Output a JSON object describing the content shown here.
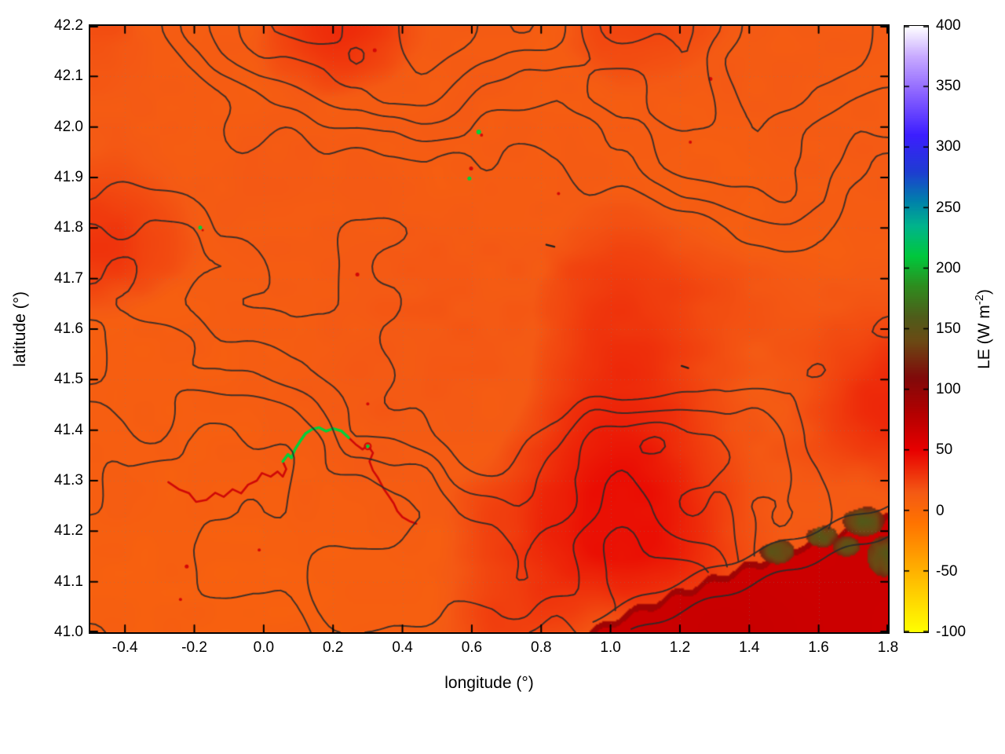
{
  "chart_data": {
    "type": "heatmap",
    "title": "",
    "xlabel": "longitude (°)",
    "ylabel": "latitude (°)",
    "colorbar_label": {
      "prefix": "LE (W m",
      "superscript": "-2",
      "suffix": ")"
    },
    "xlim": [
      -0.5,
      1.8
    ],
    "ylim": [
      41.0,
      42.2
    ],
    "x_ticks": [
      -0.4,
      -0.2,
      0.0,
      0.2,
      0.4,
      0.6,
      0.8,
      1.0,
      1.2,
      1.4,
      1.6,
      1.8
    ],
    "x_tick_labels": [
      "-0.4",
      "-0.2",
      "0.0",
      "0.2",
      "0.4",
      "0.6",
      "0.8",
      "1.0",
      "1.2",
      "1.4",
      "1.6",
      "1.8"
    ],
    "y_ticks": [
      41.0,
      41.1,
      41.2,
      41.3,
      41.4,
      41.5,
      41.6,
      41.7,
      41.8,
      41.9,
      42.0,
      42.1,
      42.2
    ],
    "y_tick_labels": [
      "41.0",
      "41.1",
      "41.2",
      "41.3",
      "41.4",
      "41.5",
      "41.6",
      "41.7",
      "41.8",
      "41.9",
      "42.0",
      "42.1",
      "42.2"
    ],
    "colorbar": {
      "range": [
        -100,
        400
      ],
      "ticks": [
        -100,
        -50,
        0,
        50,
        100,
        150,
        200,
        250,
        300,
        350,
        400
      ],
      "tick_labels": [
        "-100",
        "-50",
        "0",
        "50",
        "100",
        "150",
        "200",
        "250",
        "300",
        "350",
        "400"
      ],
      "palette_stops": [
        {
          "value": -100,
          "color": "#ffff00"
        },
        {
          "value": -70,
          "color": "#ffd200"
        },
        {
          "value": -40,
          "color": "#ffa200"
        },
        {
          "value": -10,
          "color": "#ff7300"
        },
        {
          "value": 15,
          "color": "#f45a14"
        },
        {
          "value": 50,
          "color": "#e80000"
        },
        {
          "value": 80,
          "color": "#b40000"
        },
        {
          "value": 110,
          "color": "#800a0a"
        },
        {
          "value": 140,
          "color": "#6b4a14"
        },
        {
          "value": 160,
          "color": "#4f5c1a"
        },
        {
          "value": 185,
          "color": "#2f8c1e"
        },
        {
          "value": 210,
          "color": "#00c83c"
        },
        {
          "value": 235,
          "color": "#00b48c"
        },
        {
          "value": 255,
          "color": "#0082aa"
        },
        {
          "value": 280,
          "color": "#1e3cd2"
        },
        {
          "value": 310,
          "color": "#3c1eff"
        },
        {
          "value": 345,
          "color": "#8c64ff"
        },
        {
          "value": 375,
          "color": "#c8aaff"
        },
        {
          "value": 400,
          "color": "#ffffff"
        }
      ]
    },
    "overlay": "dark terrain-style contour lines and faint dotted graticule over the LE image",
    "field_summary": {
      "description": "Latent heat flux (LE) map: land mostly LE ≈ 0–25 W m-2 (orange) with diffuse redder patches ≈ 30–45; sea in the bottom-right corner LE ≈ 55–90 (red) with dark olive-green coastal patches ≈ 150; a river course near (0.1°, 41.3°–41.4°) shows LE ≈ 150–250 (green/red line); scattered small red and green specks elsewhere.",
      "land_LE_typical": 10,
      "sea_LE_typical": 60,
      "river_LE_typical": 200,
      "contour_color": "#2d2d2d",
      "grid_style": "dotted"
    },
    "features": {
      "sea": {
        "lon_start": 0.93,
        "rise": 0.235,
        "green_patches": [
          [
            1.48,
            41.16,
            0.05,
            0.025
          ],
          [
            1.61,
            41.19,
            0.045,
            0.022
          ],
          [
            1.73,
            41.22,
            0.06,
            0.03
          ],
          [
            1.79,
            41.15,
            0.05,
            0.04
          ],
          [
            1.68,
            41.17,
            0.04,
            0.02
          ]
        ]
      },
      "river": [
        [
          -0.275,
          41.297
        ],
        [
          -0.245,
          41.283
        ],
        [
          -0.215,
          41.275
        ],
        [
          -0.195,
          41.258
        ],
        [
          -0.165,
          41.262
        ],
        [
          -0.14,
          41.276
        ],
        [
          -0.115,
          41.268
        ],
        [
          -0.09,
          41.283
        ],
        [
          -0.065,
          41.275
        ],
        [
          -0.045,
          41.292
        ],
        [
          -0.02,
          41.3
        ],
        [
          -0.005,
          41.315
        ],
        [
          0.02,
          41.308
        ],
        [
          0.04,
          41.318
        ],
        [
          0.055,
          41.308
        ],
        [
          0.065,
          41.323
        ],
        [
          0.055,
          41.338
        ],
        [
          0.07,
          41.352
        ],
        [
          0.08,
          41.345
        ],
        [
          0.09,
          41.362
        ],
        [
          0.105,
          41.378
        ],
        [
          0.12,
          41.393
        ],
        [
          0.14,
          41.402
        ],
        [
          0.16,
          41.405
        ],
        [
          0.18,
          41.398
        ],
        [
          0.2,
          41.403
        ],
        [
          0.225,
          41.398
        ],
        [
          0.245,
          41.385
        ],
        [
          0.265,
          41.372
        ],
        [
          0.285,
          41.362
        ],
        [
          0.3,
          41.37
        ],
        [
          0.315,
          41.355
        ],
        [
          0.305,
          41.338
        ],
        [
          0.315,
          41.32
        ],
        [
          0.33,
          41.305
        ],
        [
          0.345,
          41.285
        ],
        [
          0.36,
          41.27
        ],
        [
          0.375,
          41.255
        ],
        [
          0.385,
          41.24
        ],
        [
          0.4,
          41.228
        ],
        [
          0.42,
          41.22
        ],
        [
          0.44,
          41.215
        ]
      ],
      "river_green_segment": {
        "lon_min": 0.05,
        "lon_max": 0.25,
        "lat_min": 41.332
      },
      "pond": [
        0.3,
        41.368
      ],
      "specks": [
        [
          0.32,
          42.152,
          "r",
          2.5
        ],
        [
          1.288,
          42.095,
          "r",
          2.5
        ],
        [
          0.62,
          41.99,
          "g",
          3
        ],
        [
          0.628,
          41.984,
          "r",
          2
        ],
        [
          0.598,
          41.918,
          "r",
          2.5
        ],
        [
          0.593,
          41.898,
          "g",
          2.5
        ],
        [
          0.85,
          41.868,
          "r",
          2
        ],
        [
          1.23,
          41.97,
          "r",
          2
        ],
        [
          -0.183,
          41.801,
          "g",
          2.5
        ],
        [
          -0.176,
          41.796,
          "r",
          1.5
        ],
        [
          0.27,
          41.708,
          "r",
          2.5
        ],
        [
          0.3,
          41.452,
          "r",
          2
        ],
        [
          -0.222,
          41.13,
          "r",
          2.5
        ],
        [
          -0.24,
          41.065,
          "r",
          2
        ],
        [
          -0.013,
          41.163,
          "r",
          2
        ]
      ],
      "dashes": [
        [
          0.815,
          41.767,
          0.838,
          41.763
        ],
        [
          1.205,
          41.527,
          1.224,
          41.523
        ]
      ]
    }
  }
}
